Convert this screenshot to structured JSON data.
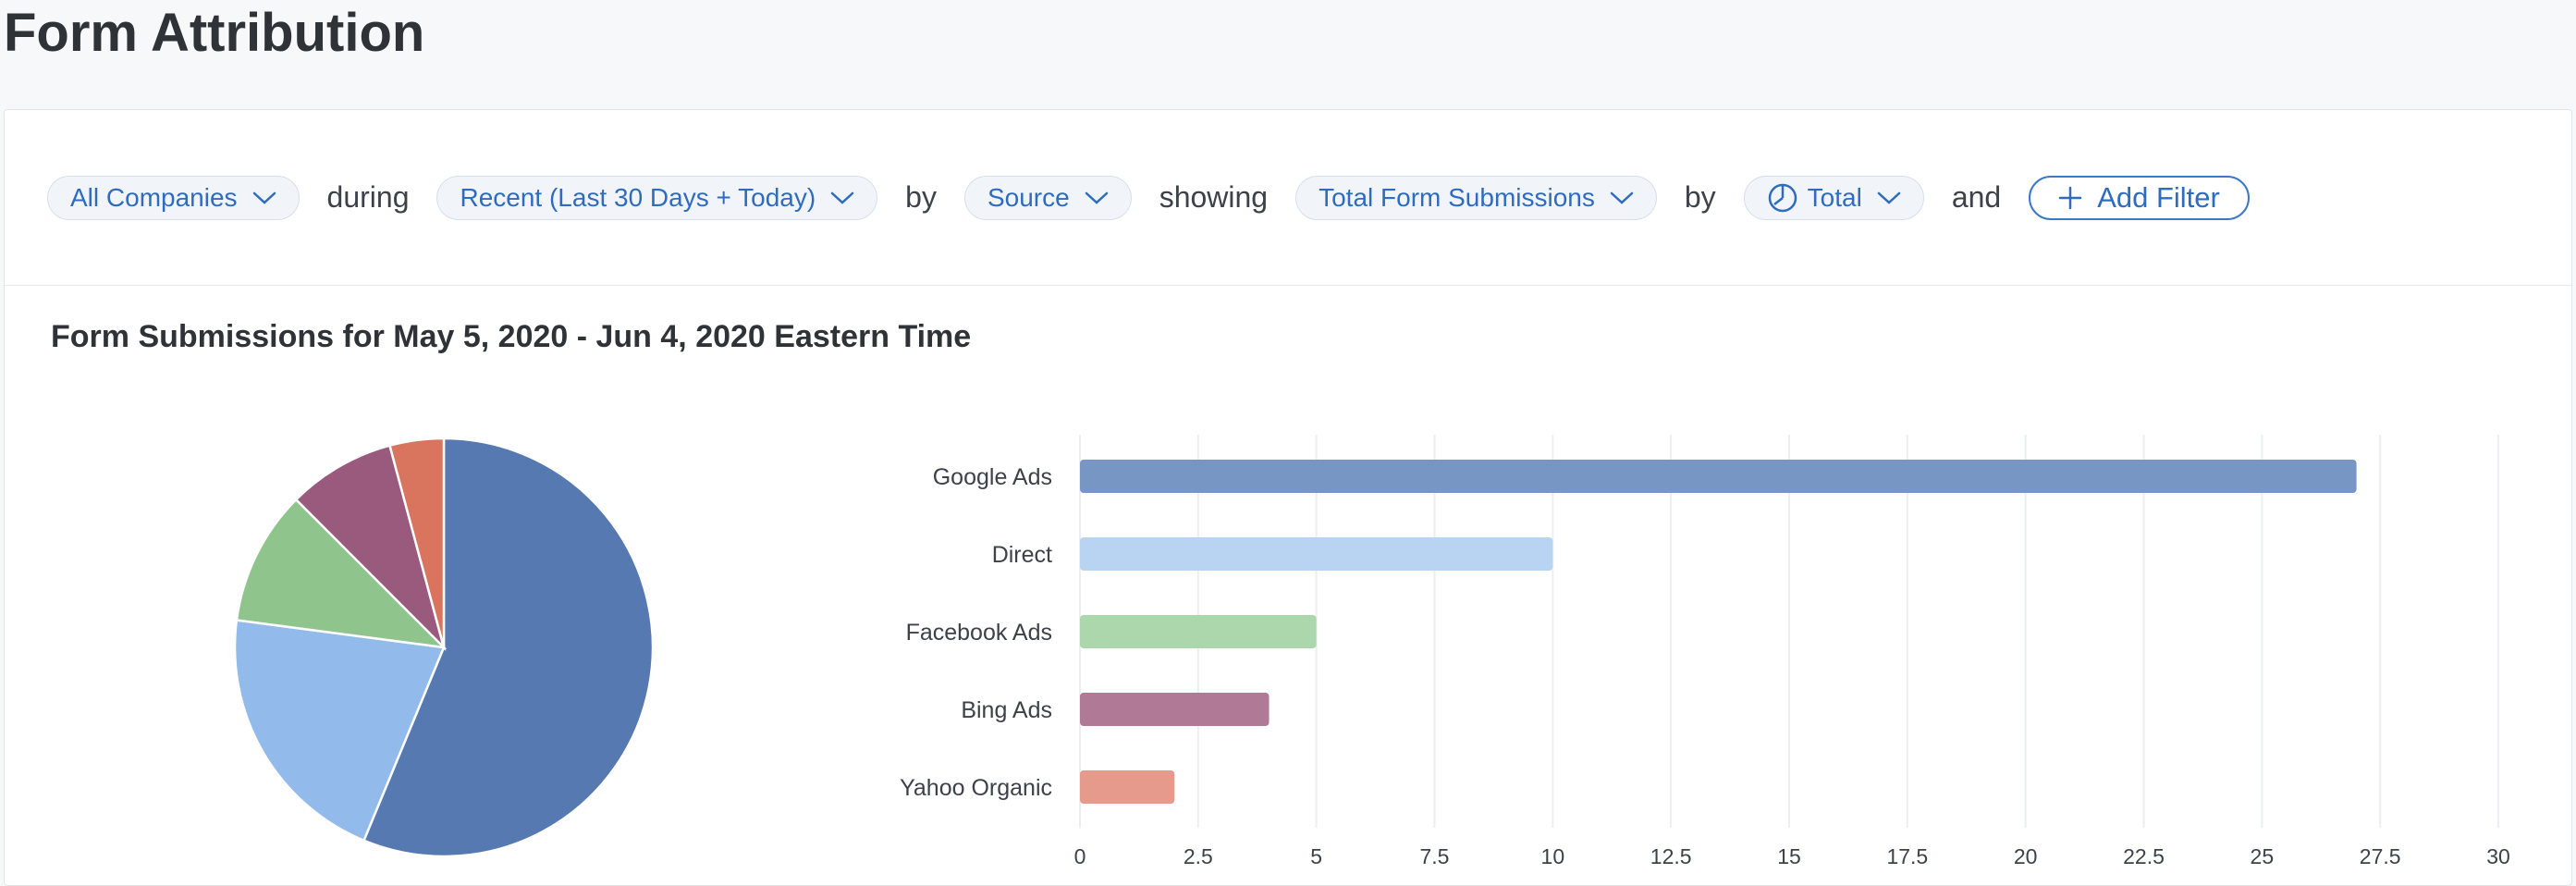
{
  "page": {
    "title": "Form Attribution"
  },
  "filters": {
    "companies": "All Companies",
    "during_word": "during",
    "date_range": "Recent (Last 30 Days + Today)",
    "by_word_1": "by",
    "group_by": "Source",
    "showing_word": "showing",
    "metric": "Total Form Submissions",
    "by_word_2": "by",
    "period": "Total",
    "and_word": "and",
    "add_filter": "Add Filter"
  },
  "chart_data": {
    "type": "bar",
    "title": "Form Submissions for May 5, 2020 - Jun 4, 2020 Eastern Time",
    "categories": [
      "Google Ads",
      "Direct",
      "Facebook Ads",
      "Bing Ads",
      "Yahoo Organic"
    ],
    "values": [
      27,
      10,
      5,
      4,
      2
    ],
    "pie_colors": [
      "#5579b0",
      "#92bbec",
      "#8fc48d",
      "#9a5a7e",
      "#d9755e"
    ],
    "bar_colors": [
      "#7896c3",
      "#b9d4f2",
      "#acd6ab",
      "#b07a96",
      "#e59a8c"
    ],
    "x_ticks": [
      "0",
      "2.5",
      "5",
      "7.5",
      "10",
      "12.5",
      "15",
      "17.5",
      "20",
      "22.5",
      "25",
      "27.5",
      "30"
    ],
    "xlim": [
      0,
      30
    ],
    "grid": true,
    "xlabel": "",
    "ylabel": ""
  }
}
